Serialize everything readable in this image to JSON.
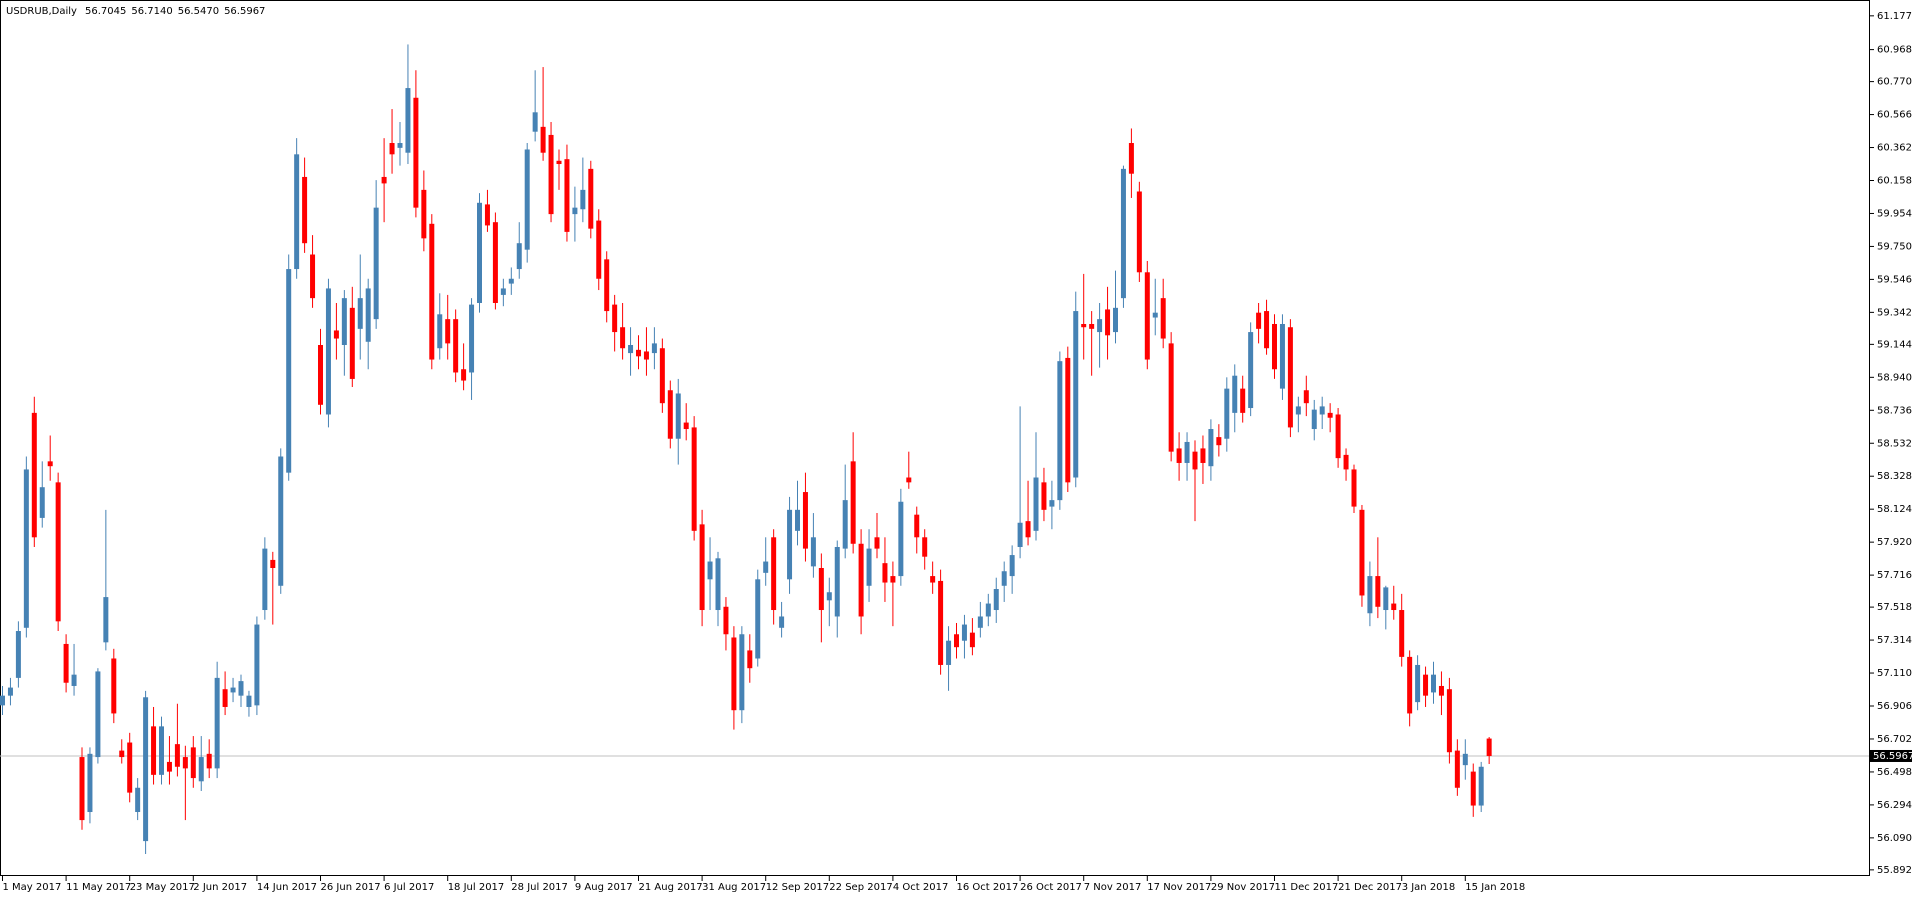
{
  "chart_data": {
    "type": "candlestick",
    "title": "USDRUB,Daily",
    "title_values": [
      "56.7045",
      "56.7140",
      "56.5470",
      "56.5967"
    ],
    "current_price": {
      "value": 56.5967,
      "label": "56.5967"
    },
    "up_color": "#4682b4",
    "down_color": "#ff0000",
    "ylim": [
      55.854,
      61.275
    ],
    "yticks": [
      {
        "value": 61.177,
        "label": "61.1770"
      },
      {
        "value": 60.968,
        "label": "60.9680"
      },
      {
        "value": 60.77,
        "label": "60.7700"
      },
      {
        "value": 60.566,
        "label": "60.5660"
      },
      {
        "value": 60.362,
        "label": "60.3620"
      },
      {
        "value": 60.158,
        "label": "60.1580"
      },
      {
        "value": 59.954,
        "label": "59.9540"
      },
      {
        "value": 59.75,
        "label": "59.7500"
      },
      {
        "value": 59.546,
        "label": "59.5460"
      },
      {
        "value": 59.342,
        "label": "59.3420"
      },
      {
        "value": 59.144,
        "label": "59.1440"
      },
      {
        "value": 58.94,
        "label": "58.9400"
      },
      {
        "value": 58.736,
        "label": "58.7360"
      },
      {
        "value": 58.532,
        "label": "58.5320"
      },
      {
        "value": 58.328,
        "label": "58.3280"
      },
      {
        "value": 58.124,
        "label": "58.1240"
      },
      {
        "value": 57.92,
        "label": "57.9200"
      },
      {
        "value": 57.716,
        "label": "57.7160"
      },
      {
        "value": 57.518,
        "label": "57.5180"
      },
      {
        "value": 57.314,
        "label": "57.3140"
      },
      {
        "value": 57.11,
        "label": "57.1100"
      },
      {
        "value": 56.906,
        "label": "56.9060"
      },
      {
        "value": 56.702,
        "label": "56.7020"
      },
      {
        "value": 56.498,
        "label": "56.4980"
      },
      {
        "value": 56.294,
        "label": "56.2940"
      },
      {
        "value": 56.09,
        "label": "56.0900"
      },
      {
        "value": 55.892,
        "label": "55.8920"
      }
    ],
    "categories": [
      "1 May 2017",
      null,
      null,
      null,
      null,
      null,
      null,
      null,
      "11 May 2017",
      null,
      null,
      null,
      null,
      null,
      null,
      null,
      "23 May 2017",
      null,
      null,
      null,
      null,
      null,
      null,
      null,
      "2 Jun 2017",
      null,
      null,
      null,
      null,
      null,
      null,
      null,
      "14 Jun 2017",
      null,
      null,
      null,
      null,
      null,
      null,
      null,
      "26 Jun 2017",
      null,
      null,
      null,
      null,
      null,
      null,
      null,
      "6 Jul 2017",
      null,
      null,
      null,
      null,
      null,
      null,
      null,
      "18 Jul 2017",
      null,
      null,
      null,
      null,
      null,
      null,
      null,
      "28 Jul 2017",
      null,
      null,
      null,
      null,
      null,
      null,
      null,
      "9 Aug 2017",
      null,
      null,
      null,
      null,
      null,
      null,
      null,
      "21 Aug 2017",
      null,
      null,
      null,
      null,
      null,
      null,
      null,
      "31 Aug 2017",
      null,
      null,
      null,
      null,
      null,
      null,
      null,
      "12 Sep 2017",
      null,
      null,
      null,
      null,
      null,
      null,
      null,
      "22 Sep 2017",
      null,
      null,
      null,
      null,
      null,
      null,
      null,
      "4 Oct 2017",
      null,
      null,
      null,
      null,
      null,
      null,
      null,
      "16 Oct 2017",
      null,
      null,
      null,
      null,
      null,
      null,
      null,
      "26 Oct 2017",
      null,
      null,
      null,
      null,
      null,
      null,
      null,
      "7 Nov 2017",
      null,
      null,
      null,
      null,
      null,
      null,
      null,
      "17 Nov 2017",
      null,
      null,
      null,
      null,
      null,
      null,
      null,
      "29 Nov 2017",
      null,
      null,
      null,
      null,
      null,
      null,
      null,
      "11 Dec 2017",
      null,
      null,
      null,
      null,
      null,
      null,
      null,
      "21 Dec 2017",
      null,
      null,
      null,
      null,
      null,
      null,
      null,
      "3 Jan 2018",
      null,
      null,
      null,
      null,
      null,
      null,
      null,
      "15 Jan 2018",
      null,
      null,
      null
    ],
    "ohlc": [
      [
        56.91,
        57.03,
        56.85,
        56.97
      ],
      [
        56.97,
        57.08,
        56.91,
        57.02
      ],
      [
        57.08,
        57.43,
        57.02,
        57.37
      ],
      [
        57.39,
        58.45,
        57.33,
        58.37
      ],
      [
        58.72,
        58.82,
        57.89,
        57.95
      ],
      [
        58.07,
        58.42,
        58.01,
        58.26
      ],
      [
        58.42,
        58.58,
        58.3,
        58.39
      ],
      [
        58.29,
        58.35,
        57.37,
        57.43
      ],
      [
        57.29,
        57.35,
        56.99,
        57.05
      ],
      [
        57.03,
        57.29,
        56.97,
        57.1
      ],
      [
        56.59,
        56.65,
        56.14,
        56.2
      ],
      [
        56.25,
        56.65,
        56.18,
        56.61
      ],
      [
        56.59,
        57.14,
        56.55,
        57.12
      ],
      [
        57.3,
        58.12,
        57.25,
        57.58
      ],
      [
        57.2,
        57.26,
        56.8,
        56.86
      ],
      [
        56.63,
        56.7,
        56.55,
        56.59
      ],
      [
        56.68,
        56.74,
        56.31,
        56.37
      ],
      [
        56.25,
        56.46,
        56.2,
        56.4
      ],
      [
        56.07,
        57.0,
        55.99,
        56.96
      ],
      [
        56.78,
        56.9,
        56.42,
        56.48
      ],
      [
        56.48,
        56.84,
        56.42,
        56.78
      ],
      [
        56.56,
        56.72,
        56.42,
        56.5
      ],
      [
        56.67,
        56.92,
        56.47,
        56.53
      ],
      [
        56.59,
        56.66,
        56.2,
        56.52
      ],
      [
        56.65,
        56.72,
        56.4,
        56.46
      ],
      [
        56.44,
        56.72,
        56.38,
        56.59
      ],
      [
        56.61,
        56.7,
        56.46,
        56.52
      ],
      [
        56.52,
        57.18,
        56.46,
        57.08
      ],
      [
        57.01,
        57.12,
        56.85,
        56.9
      ],
      [
        56.99,
        57.08,
        56.93,
        57.02
      ],
      [
        56.97,
        57.1,
        56.9,
        57.06
      ],
      [
        56.9,
        57.0,
        56.84,
        56.97
      ],
      [
        56.91,
        57.46,
        56.85,
        57.41
      ],
      [
        57.5,
        57.95,
        57.44,
        57.88
      ],
      [
        57.81,
        57.86,
        57.41,
        57.76
      ],
      [
        57.65,
        58.5,
        57.6,
        58.45
      ],
      [
        58.35,
        59.7,
        58.3,
        59.61
      ],
      [
        59.61,
        60.42,
        59.55,
        60.32
      ],
      [
        60.18,
        60.3,
        59.71,
        59.77
      ],
      [
        59.7,
        59.82,
        59.37,
        59.43
      ],
      [
        59.14,
        59.24,
        58.71,
        58.77
      ],
      [
        58.71,
        59.55,
        58.63,
        59.49
      ],
      [
        59.23,
        59.4,
        59.05,
        59.18
      ],
      [
        59.14,
        59.48,
        58.95,
        59.43
      ],
      [
        59.37,
        59.5,
        58.88,
        58.93
      ],
      [
        59.24,
        59.7,
        59.05,
        59.43
      ],
      [
        59.16,
        59.55,
        58.99,
        59.49
      ],
      [
        59.3,
        60.16,
        59.24,
        59.99
      ],
      [
        60.18,
        60.42,
        59.9,
        60.14
      ],
      [
        60.39,
        60.6,
        60.2,
        60.32
      ],
      [
        60.36,
        60.52,
        60.25,
        60.39
      ],
      [
        60.33,
        61.0,
        60.26,
        60.73
      ],
      [
        60.67,
        60.84,
        59.93,
        59.99
      ],
      [
        60.1,
        60.22,
        59.72,
        59.8
      ],
      [
        59.89,
        59.95,
        58.99,
        59.05
      ],
      [
        59.12,
        59.46,
        59.05,
        59.33
      ],
      [
        59.3,
        59.45,
        59.05,
        59.15
      ],
      [
        59.3,
        59.36,
        58.91,
        58.97
      ],
      [
        58.99,
        59.15,
        58.86,
        58.92
      ],
      [
        58.97,
        59.43,
        58.8,
        59.39
      ],
      [
        59.4,
        60.08,
        59.34,
        60.02
      ],
      [
        60.01,
        60.1,
        59.84,
        59.88
      ],
      [
        59.9,
        59.96,
        59.36,
        59.4
      ],
      [
        59.45,
        59.55,
        59.38,
        59.49
      ],
      [
        59.52,
        59.62,
        59.45,
        59.55
      ],
      [
        59.61,
        59.9,
        59.55,
        59.77
      ],
      [
        59.73,
        60.39,
        59.65,
        60.35
      ],
      [
        60.46,
        60.84,
        60.4,
        60.58
      ],
      [
        60.49,
        60.86,
        60.28,
        60.33
      ],
      [
        60.44,
        60.52,
        59.9,
        59.95
      ],
      [
        60.28,
        60.35,
        60.1,
        60.26
      ],
      [
        60.29,
        60.38,
        59.78,
        59.84
      ],
      [
        59.95,
        60.12,
        59.78,
        59.99
      ],
      [
        59.98,
        60.3,
        59.9,
        60.1
      ],
      [
        60.23,
        60.28,
        59.8,
        59.86
      ],
      [
        59.91,
        59.98,
        59.48,
        59.55
      ],
      [
        59.67,
        59.72,
        59.28,
        59.35
      ],
      [
        59.39,
        59.45,
        59.1,
        59.22
      ],
      [
        59.25,
        59.4,
        59.05,
        59.12
      ],
      [
        59.09,
        59.25,
        58.95,
        59.14
      ],
      [
        59.11,
        59.2,
        58.99,
        59.07
      ],
      [
        59.1,
        59.25,
        58.95,
        59.05
      ],
      [
        59.09,
        59.25,
        58.99,
        59.15
      ],
      [
        59.12,
        59.18,
        58.72,
        58.78
      ],
      [
        58.86,
        58.92,
        58.5,
        58.56
      ],
      [
        58.56,
        58.93,
        58.4,
        58.84
      ],
      [
        58.66,
        58.78,
        58.55,
        58.62
      ],
      [
        58.63,
        58.7,
        57.93,
        57.99
      ],
      [
        58.03,
        58.12,
        57.4,
        57.5
      ],
      [
        57.69,
        57.95,
        57.5,
        57.8
      ],
      [
        57.5,
        57.86,
        57.4,
        57.82
      ],
      [
        57.52,
        57.58,
        57.25,
        57.35
      ],
      [
        57.33,
        57.4,
        56.76,
        56.88
      ],
      [
        56.88,
        57.4,
        56.8,
        57.35
      ],
      [
        57.25,
        57.35,
        57.05,
        57.14
      ],
      [
        57.2,
        57.75,
        57.15,
        57.69
      ],
      [
        57.73,
        57.95,
        57.65,
        57.8
      ],
      [
        57.95,
        58.0,
        57.41,
        57.5
      ],
      [
        57.39,
        57.55,
        57.33,
        57.46
      ],
      [
        57.69,
        58.2,
        57.6,
        58.12
      ],
      [
        57.99,
        58.3,
        57.9,
        58.12
      ],
      [
        58.23,
        58.35,
        57.8,
        57.88
      ],
      [
        57.77,
        58.1,
        57.7,
        57.95
      ],
      [
        57.76,
        57.85,
        57.3,
        57.5
      ],
      [
        57.56,
        57.7,
        57.4,
        57.61
      ],
      [
        57.46,
        57.93,
        57.33,
        57.89
      ],
      [
        57.88,
        58.4,
        57.82,
        58.18
      ],
      [
        58.42,
        58.6,
        57.85,
        57.91
      ],
      [
        57.91,
        58.0,
        57.35,
        57.46
      ],
      [
        57.65,
        58.0,
        57.55,
        57.88
      ],
      [
        57.95,
        58.1,
        57.82,
        57.88
      ],
      [
        57.79,
        57.95,
        57.55,
        57.67
      ],
      [
        57.71,
        57.8,
        57.4,
        57.67
      ],
      [
        57.71,
        58.25,
        57.65,
        58.17
      ],
      [
        58.32,
        58.48,
        58.25,
        58.29
      ],
      [
        58.09,
        58.14,
        57.85,
        57.95
      ],
      [
        57.95,
        58.0,
        57.75,
        57.83
      ],
      [
        57.71,
        57.8,
        57.6,
        57.67
      ],
      [
        57.68,
        57.75,
        57.1,
        57.16
      ],
      [
        57.16,
        57.4,
        57.0,
        57.31
      ],
      [
        57.35,
        57.42,
        57.2,
        57.27
      ],
      [
        57.31,
        57.47,
        57.2,
        57.41
      ],
      [
        57.36,
        57.45,
        57.22,
        57.27
      ],
      [
        57.39,
        57.55,
        57.33,
        57.46
      ],
      [
        57.46,
        57.6,
        57.4,
        57.54
      ],
      [
        57.5,
        57.7,
        57.42,
        57.63
      ],
      [
        57.65,
        57.8,
        57.55,
        57.74
      ],
      [
        57.71,
        57.9,
        57.6,
        57.84
      ],
      [
        57.89,
        58.76,
        57.82,
        58.04
      ],
      [
        58.05,
        58.3,
        57.9,
        57.95
      ],
      [
        57.99,
        58.6,
        57.93,
        58.32
      ],
      [
        58.29,
        58.38,
        58.05,
        58.12
      ],
      [
        58.14,
        58.3,
        58.0,
        58.18
      ],
      [
        58.18,
        59.1,
        58.12,
        59.04
      ],
      [
        59.06,
        59.13,
        58.23,
        58.29
      ],
      [
        58.32,
        59.47,
        58.26,
        59.35
      ],
      [
        59.27,
        59.58,
        59.05,
        59.25
      ],
      [
        59.27,
        59.35,
        58.95,
        59.24
      ],
      [
        59.22,
        59.4,
        59.0,
        59.3
      ],
      [
        59.36,
        59.5,
        59.05,
        59.2
      ],
      [
        59.22,
        59.6,
        59.15,
        59.37
      ],
      [
        59.43,
        60.25,
        59.37,
        60.23
      ],
      [
        60.39,
        60.48,
        60.05,
        60.2
      ],
      [
        60.09,
        60.15,
        59.53,
        59.59
      ],
      [
        59.59,
        59.66,
        58.99,
        59.05
      ],
      [
        59.31,
        59.55,
        59.2,
        59.34
      ],
      [
        59.43,
        59.55,
        59.12,
        59.18
      ],
      [
        59.15,
        59.22,
        58.42,
        58.48
      ],
      [
        58.5,
        58.6,
        58.3,
        58.41
      ],
      [
        58.41,
        58.6,
        58.3,
        58.54
      ],
      [
        58.48,
        58.55,
        58.05,
        58.37
      ],
      [
        58.5,
        58.58,
        58.28,
        58.41
      ],
      [
        58.39,
        58.68,
        58.3,
        58.62
      ],
      [
        58.57,
        58.65,
        58.45,
        58.52
      ],
      [
        58.56,
        58.94,
        58.48,
        58.87
      ],
      [
        58.72,
        59.02,
        58.6,
        58.95
      ],
      [
        58.87,
        58.95,
        58.66,
        58.72
      ],
      [
        58.75,
        59.28,
        58.7,
        59.22
      ],
      [
        59.34,
        59.4,
        59.15,
        59.24
      ],
      [
        59.35,
        59.42,
        59.08,
        59.12
      ],
      [
        59.27,
        59.33,
        58.93,
        58.99
      ],
      [
        58.87,
        59.33,
        58.8,
        59.27
      ],
      [
        59.25,
        59.3,
        58.57,
        58.63
      ],
      [
        58.71,
        58.82,
        58.6,
        58.76
      ],
      [
        58.86,
        58.95,
        58.7,
        58.78
      ],
      [
        58.62,
        58.8,
        58.55,
        58.74
      ],
      [
        58.71,
        58.82,
        58.62,
        58.76
      ],
      [
        58.72,
        58.78,
        58.6,
        58.69
      ],
      [
        58.71,
        58.75,
        58.38,
        58.44
      ],
      [
        58.46,
        58.5,
        58.3,
        58.37
      ],
      [
        58.37,
        58.4,
        58.1,
        58.14
      ],
      [
        58.12,
        58.15,
        57.52,
        57.59
      ],
      [
        57.48,
        57.8,
        57.4,
        57.71
      ],
      [
        57.71,
        57.95,
        57.45,
        57.52
      ],
      [
        57.5,
        57.65,
        57.38,
        57.64
      ],
      [
        57.54,
        57.65,
        57.44,
        57.5
      ],
      [
        57.5,
        57.6,
        57.15,
        57.21
      ],
      [
        57.21,
        57.25,
        56.78,
        56.86
      ],
      [
        56.93,
        57.22,
        56.88,
        57.16
      ],
      [
        57.1,
        57.15,
        56.9,
        56.97
      ],
      [
        56.99,
        57.18,
        56.92,
        57.1
      ],
      [
        57.03,
        57.12,
        56.85,
        56.97
      ],
      [
        57.01,
        57.08,
        56.55,
        56.62
      ],
      [
        56.63,
        56.7,
        56.35,
        56.4
      ],
      [
        56.54,
        56.7,
        56.45,
        56.61
      ],
      [
        56.5,
        56.55,
        56.22,
        56.29
      ],
      [
        56.29,
        56.56,
        56.25,
        56.53
      ],
      [
        56.7045,
        56.714,
        56.547,
        56.5967
      ]
    ]
  }
}
